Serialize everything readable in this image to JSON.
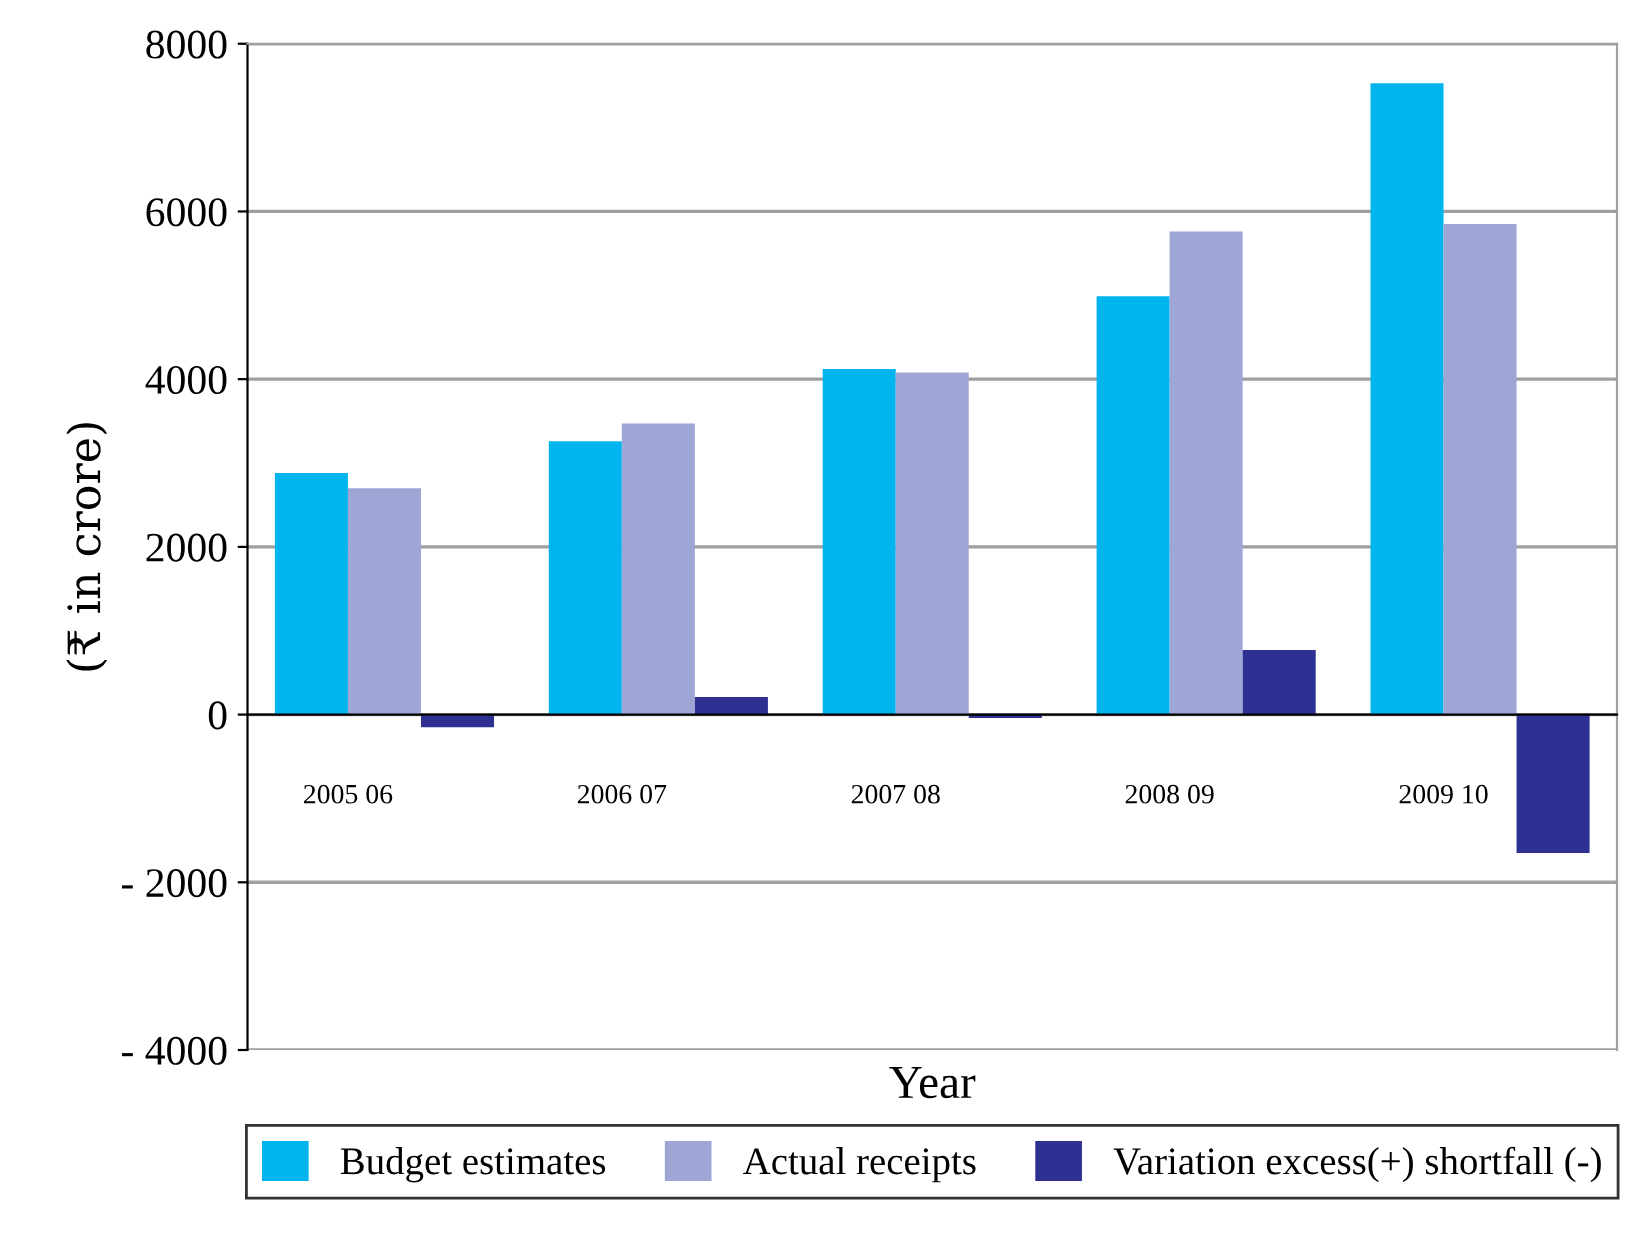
{
  "chart_data": {
    "type": "bar",
    "xlabel": "Year",
    "ylabel": "(₹ in crore)",
    "categories": [
      "2005 06",
      "2006 07",
      "2007 08",
      "2008 09",
      "2009 10"
    ],
    "series": [
      {
        "name": "Budget estimates",
        "color": "#00b4ee",
        "values": [
          2880,
          3260,
          4120,
          4990,
          7530
        ]
      },
      {
        "name": "Actual receipts",
        "color": "#9ea6d6",
        "values": [
          2700,
          3470,
          4080,
          5760,
          5850
        ]
      },
      {
        "name": "Variation excess(+) shortfall (-)",
        "color": "#2e3192",
        "values": [
          -150,
          210,
          -40,
          770,
          -1650
        ]
      }
    ],
    "ylim": [
      -4000,
      8000
    ],
    "yticks": [
      {
        "value": -4000,
        "label": "- 4000"
      },
      {
        "value": -2000,
        "label": "- 2000"
      },
      0,
      2000,
      4000,
      6000,
      8000
    ],
    "grid": "y",
    "legend": "bottom"
  }
}
